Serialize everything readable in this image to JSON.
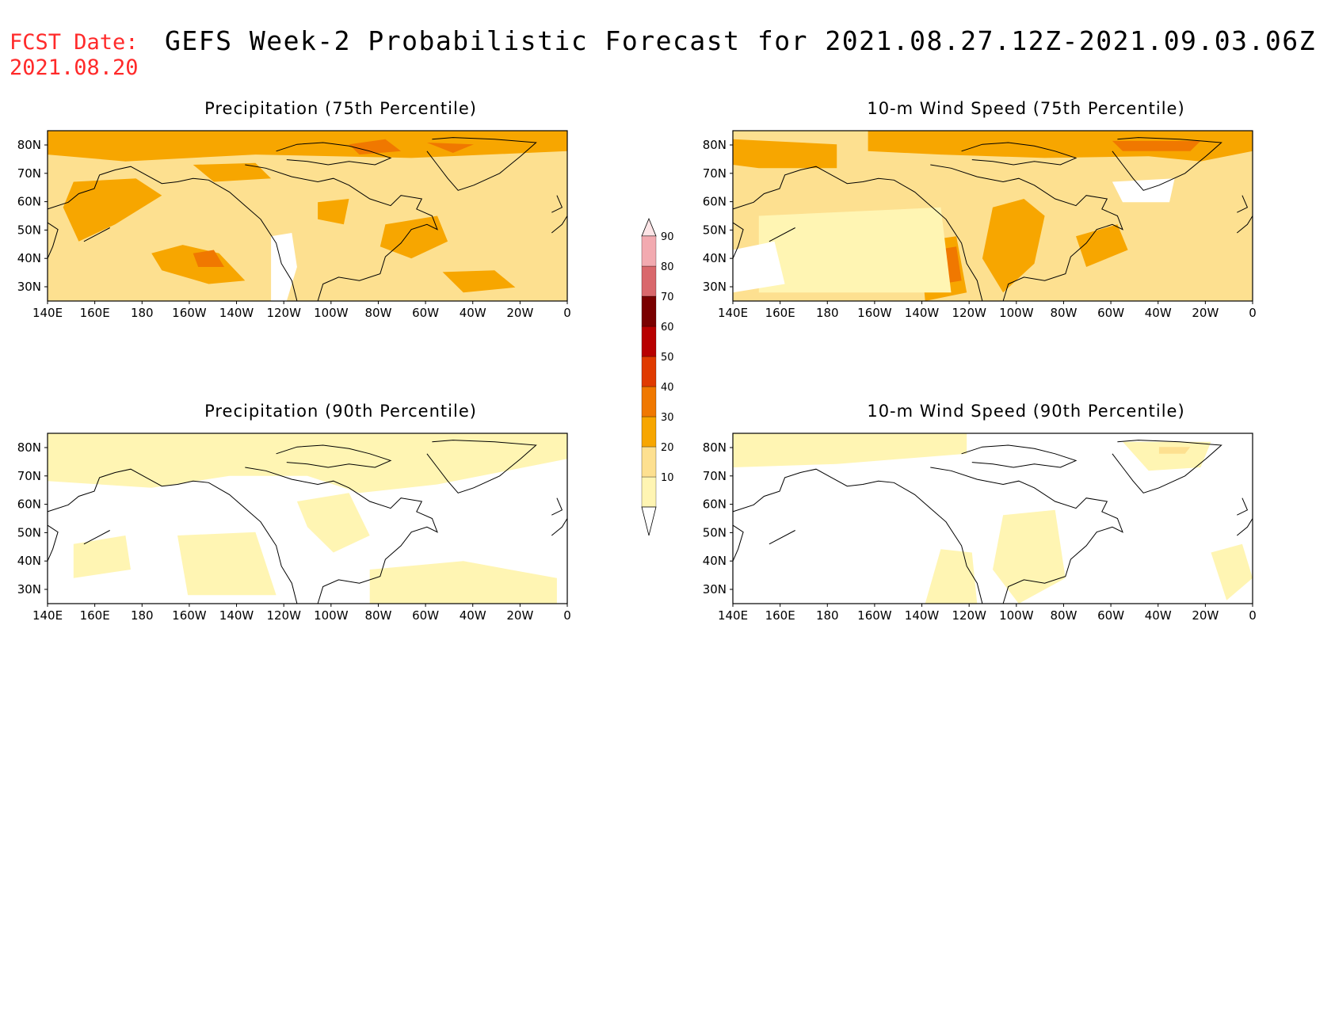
{
  "header": {
    "fcst_label": "FCST Date:",
    "fcst_date": "2021.08.20",
    "title": "GEFS Week-2 Probabilistic Forecast for 2021.08.27.12Z-2021.09.03.06Z"
  },
  "axes": {
    "lon_labels": [
      "140E",
      "160E",
      "180",
      "160W",
      "140W",
      "120W",
      "100W",
      "80W",
      "60W",
      "40W",
      "20W",
      "0"
    ],
    "lat_labels": [
      "80N",
      "70N",
      "60N",
      "50N",
      "40N",
      "30N"
    ]
  },
  "panels": [
    {
      "title": "Precipitation (75th Percentile)",
      "field": "precip75"
    },
    {
      "title": "10-m Wind Speed (75th Percentile)",
      "field": "wind75"
    },
    {
      "title": "Precipitation (90th Percentile)",
      "field": "precip90"
    },
    {
      "title": "10-m Wind Speed (90th Percentile)",
      "field": "wind90"
    }
  ],
  "colorbar": {
    "levels": [
      "10",
      "20",
      "30",
      "40",
      "50",
      "60",
      "70",
      "80",
      "90"
    ],
    "colors": [
      "#fff5b3",
      "#fde090",
      "#f7a600",
      "#f07800",
      "#e03a00",
      "#b80000",
      "#7a0000",
      "#d9686c",
      "#f2aab0",
      "#fce4e6"
    ]
  }
}
